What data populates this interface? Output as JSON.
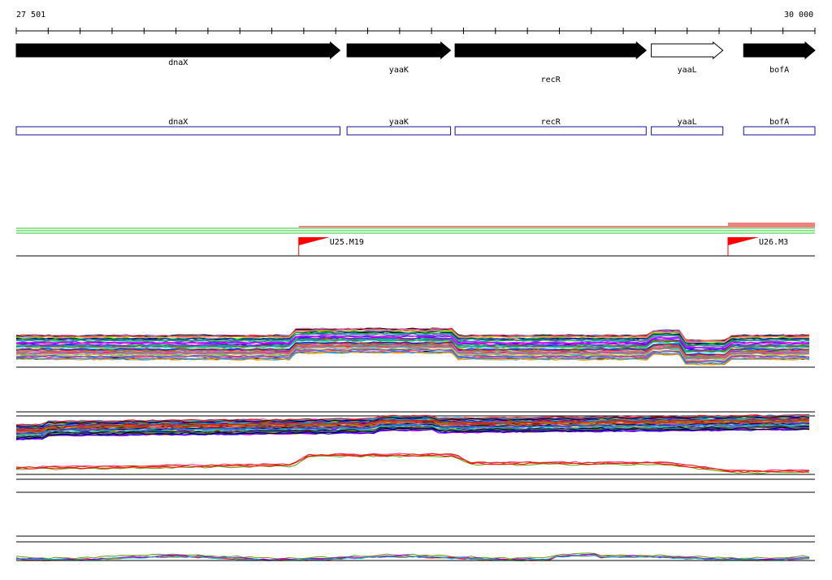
{
  "scale": {
    "start_label": "27 501",
    "end_label": "30 000",
    "start_bp": 27501,
    "end_bp": 30000
  },
  "genes": [
    {
      "name": "dnaX",
      "start": 27501,
      "end": 28514,
      "strand": "+",
      "fill": "filled",
      "label_row": 0
    },
    {
      "name": "yaaK",
      "start": 28536,
      "end": 28860,
      "strand": "+",
      "fill": "filled",
      "label_row": 1
    },
    {
      "name": "recR",
      "start": 28874,
      "end": 29472,
      "strand": "+",
      "fill": "filled",
      "label_row": 2
    },
    {
      "name": "yaaL",
      "start": 29488,
      "end": 29712,
      "strand": "+",
      "fill": "open",
      "label_row": 1
    },
    {
      "name": "bofA",
      "start": 29777,
      "end": 30000,
      "strand": "+",
      "fill": "filled",
      "label_row": 1
    }
  ],
  "transcripts": [
    {
      "name": "dnaX",
      "start": 27501,
      "end": 28514
    },
    {
      "name": "yaaK",
      "start": 28536,
      "end": 28860
    },
    {
      "name": "recR",
      "start": 28874,
      "end": 29472
    },
    {
      "name": "yaaL",
      "start": 29488,
      "end": 29712
    },
    {
      "name": "bofA",
      "start": 29777,
      "end": 30000
    }
  ],
  "promoters": [
    {
      "name": "U25.M19",
      "position": 28385
    },
    {
      "name": "U26.M3",
      "position": 29728
    }
  ],
  "colors": {
    "gene_fill": "#000000",
    "transcript_stroke": "#1010a0",
    "promoter_flag": "#ff0000",
    "track_green": "#22cc22",
    "track_red": "#dd0000"
  }
}
